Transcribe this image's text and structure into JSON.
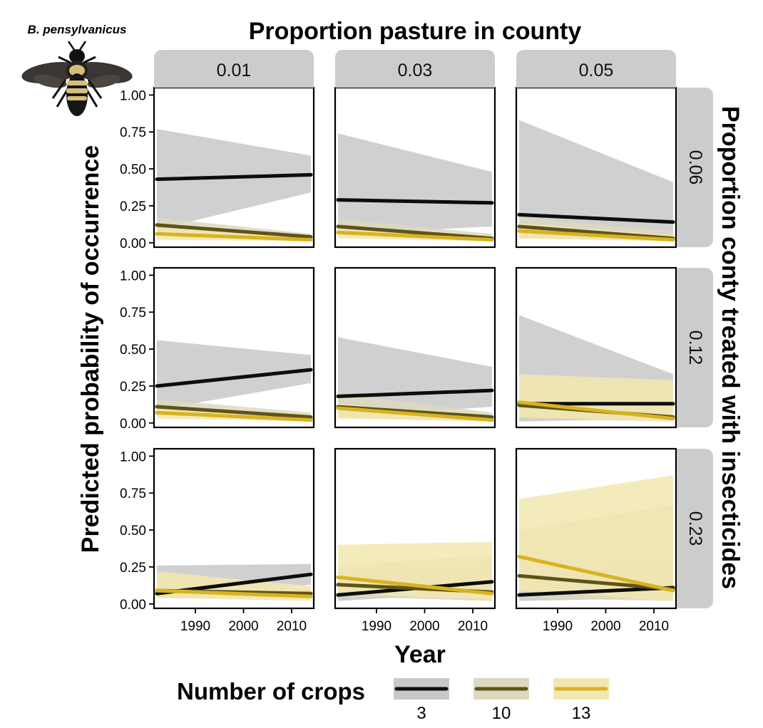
{
  "species": "B. pensylvanicus",
  "chart_data": {
    "type": "line",
    "title": "Proportion pasture in county",
    "xlabel": "Year",
    "ylabel": "Predicted probability of occurrence",
    "right_label": "Proportion conty treated with insecticides",
    "xlim": [
      1982,
      2014
    ],
    "ylim": [
      0,
      1
    ],
    "x_ticks": [
      1990,
      2000,
      2010
    ],
    "y_ticks": [
      {
        "value": 0,
        "label": "0.00"
      },
      {
        "value": 0.25,
        "label": "0.25"
      },
      {
        "value": 0.5,
        "label": "0.50"
      },
      {
        "value": 0.75,
        "label": "0.75"
      },
      {
        "value": 1,
        "label": "1.00"
      }
    ],
    "col_facets": [
      "0.01",
      "0.03",
      "0.05"
    ],
    "row_facets": [
      "0.06",
      "0.12",
      "0.23"
    ],
    "legend": {
      "title": "Number of crops",
      "position": "bottom",
      "entries": [
        {
          "label": "3",
          "line_color": "#0d0d0d",
          "band_color": "#c8c8c8"
        },
        {
          "label": "10",
          "line_color": "#5e5418",
          "band_color": "#ddd8c0"
        },
        {
          "label": "13",
          "line_color": "#d9b31f",
          "band_color": "#f2e7b0"
        }
      ]
    },
    "panels": [
      {
        "row": 0,
        "col": 0,
        "series": [
          {
            "name": "3",
            "y": [
              0.43,
              0.46
            ],
            "lower": [
              0.09,
              0.34
            ],
            "upper": [
              0.77,
              0.59
            ]
          },
          {
            "name": "10",
            "y": [
              0.12,
              0.04
            ],
            "lower": [
              0.05,
              0.02
            ],
            "upper": [
              0.17,
              0.06
            ]
          },
          {
            "name": "13",
            "y": [
              0.06,
              0.02
            ],
            "lower": [
              0.02,
              0.01
            ],
            "upper": [
              0.1,
              0.04
            ]
          }
        ]
      },
      {
        "row": 0,
        "col": 1,
        "series": [
          {
            "name": "3",
            "y": [
              0.29,
              0.27
            ],
            "lower": [
              0.06,
              0.11
            ],
            "upper": [
              0.74,
              0.48
            ]
          },
          {
            "name": "10",
            "y": [
              0.11,
              0.03
            ],
            "lower": [
              0.05,
              0.01
            ],
            "upper": [
              0.16,
              0.06
            ]
          },
          {
            "name": "13",
            "y": [
              0.07,
              0.02
            ],
            "lower": [
              0.03,
              0.01
            ],
            "upper": [
              0.11,
              0.04
            ]
          }
        ]
      },
      {
        "row": 0,
        "col": 2,
        "series": [
          {
            "name": "3",
            "y": [
              0.19,
              0.14
            ],
            "lower": [
              0.03,
              0.03
            ],
            "upper": [
              0.83,
              0.41
            ]
          },
          {
            "name": "10",
            "y": [
              0.11,
              0.03
            ],
            "lower": [
              0.03,
              0.01
            ],
            "upper": [
              0.17,
              0.08
            ]
          },
          {
            "name": "13",
            "y": [
              0.08,
              0.02
            ],
            "lower": [
              0.03,
              0.01
            ],
            "upper": [
              0.13,
              0.05
            ]
          }
        ]
      },
      {
        "row": 1,
        "col": 0,
        "series": [
          {
            "name": "3",
            "y": [
              0.25,
              0.36
            ],
            "lower": [
              0.09,
              0.27
            ],
            "upper": [
              0.56,
              0.46
            ]
          },
          {
            "name": "10",
            "y": [
              0.11,
              0.04
            ],
            "lower": [
              0.05,
              0.02
            ],
            "upper": [
              0.16,
              0.07
            ]
          },
          {
            "name": "13",
            "y": [
              0.07,
              0.02
            ],
            "lower": [
              0.03,
              0.01
            ],
            "upper": [
              0.11,
              0.04
            ]
          }
        ]
      },
      {
        "row": 1,
        "col": 1,
        "series": [
          {
            "name": "3",
            "y": [
              0.18,
              0.22
            ],
            "lower": [
              0.04,
              0.11
            ],
            "upper": [
              0.58,
              0.38
            ]
          },
          {
            "name": "10",
            "y": [
              0.11,
              0.04
            ],
            "lower": [
              0.04,
              0.01
            ],
            "upper": [
              0.2,
              0.07
            ]
          },
          {
            "name": "13",
            "y": [
              0.1,
              0.02
            ],
            "lower": [
              0.03,
              0.01
            ],
            "upper": [
              0.13,
              0.04
            ]
          }
        ]
      },
      {
        "row": 1,
        "col": 2,
        "series": [
          {
            "name": "3",
            "y": [
              0.13,
              0.13
            ],
            "lower": [
              0.01,
              0.03
            ],
            "upper": [
              0.73,
              0.33
            ]
          },
          {
            "name": "10",
            "y": [
              0.12,
              0.04
            ],
            "lower": [
              0.03,
              0.01
            ],
            "upper": [
              0.31,
              0.21
            ]
          },
          {
            "name": "13",
            "y": [
              0.14,
              0.03
            ],
            "lower": [
              0.04,
              0.01
            ],
            "upper": [
              0.33,
              0.29
            ]
          }
        ]
      },
      {
        "row": 2,
        "col": 0,
        "series": [
          {
            "name": "3",
            "y": [
              0.07,
              0.2
            ],
            "lower": [
              0.04,
              0.13
            ],
            "upper": [
              0.26,
              0.27
            ]
          },
          {
            "name": "10",
            "y": [
              0.09,
              0.07
            ],
            "lower": [
              0.04,
              0.04
            ],
            "upper": [
              0.19,
              0.1
            ]
          },
          {
            "name": "13",
            "y": [
              0.09,
              0.05
            ],
            "lower": [
              0.04,
              0.02
            ],
            "upper": [
              0.22,
              0.12
            ]
          }
        ]
      },
      {
        "row": 2,
        "col": 1,
        "series": [
          {
            "name": "3",
            "y": [
              0.06,
              0.15
            ],
            "lower": [
              0.02,
              0.08
            ],
            "upper": [
              0.2,
              0.26
            ]
          },
          {
            "name": "10",
            "y": [
              0.13,
              0.08
            ],
            "lower": [
              0.05,
              0.02
            ],
            "upper": [
              0.26,
              0.33
            ]
          },
          {
            "name": "13",
            "y": [
              0.18,
              0.07
            ],
            "lower": [
              0.07,
              0.03
            ],
            "upper": [
              0.4,
              0.42
            ]
          }
        ]
      },
      {
        "row": 2,
        "col": 2,
        "series": [
          {
            "name": "3",
            "y": [
              0.06,
              0.11
            ],
            "lower": [
              0.02,
              0.04
            ],
            "upper": [
              0.19,
              0.3
            ]
          },
          {
            "name": "10",
            "y": [
              0.19,
              0.1
            ],
            "lower": [
              0.04,
              0.02
            ],
            "upper": [
              0.5,
              0.67
            ]
          },
          {
            "name": "13",
            "y": [
              0.32,
              0.09
            ],
            "lower": [
              0.09,
              0.02
            ],
            "upper": [
              0.71,
              0.87
            ]
          }
        ]
      }
    ]
  }
}
